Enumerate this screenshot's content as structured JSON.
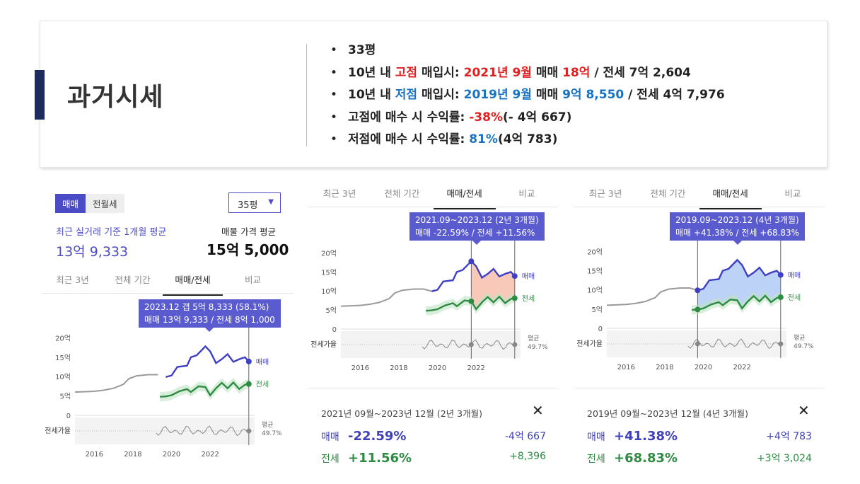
{
  "summary": {
    "title": "과거시세",
    "bullets": {
      "b1": "33평",
      "b2_a": "10년 내 ",
      "b2_b": "고점",
      "b2_c": " 매입시: ",
      "b2_d": "2021년 9월",
      "b2_e": " 매매 ",
      "b2_f": "18억",
      "b2_g": " / 전세 7억 2,604",
      "b3_a": "10년 내 ",
      "b3_b": "저점",
      "b3_c": " 매입시: ",
      "b3_d": "2019년 9월",
      "b3_e": " 매매 ",
      "b3_f": "9억 8,550",
      "b3_g": " / 전세 4억 7,976",
      "b4_a": "고점에 매수 시 수익률: ",
      "b4_b": "-38%",
      "b4_c": "(- 4억 667)",
      "b5_a": "저점에 매수 시 수익률: ",
      "b5_b": "81%",
      "b5_c": "(4억 783)"
    }
  },
  "left": {
    "seg_sale": "매매",
    "seg_rent": "전월세",
    "size": "35평",
    "recent_label": "최근 실거래 기준 1개월 평균",
    "recent_value": "13억 9,333",
    "listing_label": "매물 가격 평균",
    "listing_value": "15억 5,000",
    "tabs": [
      "최근 3년",
      "전체 기간",
      "매매/전세",
      "비교"
    ],
    "tooltip": [
      "2023.12  갭 5억 8,333 (58.1%)",
      "매매 13억 9,333 / 전세 8억 1,000"
    ]
  },
  "middle": {
    "tabs": [
      "최근 3년",
      "전체 기간",
      "매매/전세",
      "비교"
    ],
    "tooltip": [
      "2021.09~2023.12 (2년 3개월)",
      "매매 -22.59%  /  전세 +11.56%"
    ],
    "period": "2021년 09월~2023년 12월 (2년 3개월)",
    "sale_label": "매매",
    "sale_pct": "-22.59%",
    "sale_amt": "-4억 667",
    "rent_label": "전세",
    "rent_pct": "+11.56%",
    "rent_amt": "+8,396"
  },
  "right": {
    "tabs": [
      "최근 3년",
      "전체 기간",
      "매매/전세",
      "비교"
    ],
    "tooltip": [
      "2019.09~2023.12 (4년 3개월)",
      "매매 +41.38%  /  전세 +68.83%"
    ],
    "period": "2019년 09월~2023년 12월 (4년 3개월)",
    "sale_label": "매매",
    "sale_pct": "+41.38%",
    "sale_amt": "+4억 783",
    "rent_label": "전세",
    "rent_pct": "+68.83%",
    "rent_amt": "+3억 3,024"
  },
  "chart_common": {
    "y_ticks": [
      "20억",
      "15억",
      "10억",
      "5억",
      "0"
    ],
    "x_ticks": [
      "2016",
      "2018",
      "2020",
      "2022"
    ],
    "series_sale": "매매",
    "series_rent": "전세",
    "ratio_label": "전세가율",
    "ratio_avg_label": "평균",
    "ratio_avg_value": "49.7%",
    "close_icon": "close-icon",
    "colors": {
      "sale": "#3f3fc4",
      "rent": "#2e8b43",
      "history": "#9a9a9a",
      "loss_fill": "#f4a58a",
      "gain_fill": "#8fb4f0"
    }
  },
  "chart_data": [
    {
      "type": "line",
      "title": "",
      "x_range": [
        2015.0,
        2024.3
      ],
      "ylim": [
        0,
        21
      ],
      "series": [
        {
          "name": "매매",
          "x": [
            2015.0,
            2016.0,
            2016.5,
            2017.0,
            2017.5,
            2017.8,
            2018.2,
            2018.8,
            2019.3,
            2019.7,
            2020.0,
            2020.3,
            2020.8,
            2021.0,
            2021.3,
            2021.75,
            2022.0,
            2022.3,
            2022.6,
            2022.9,
            2023.2,
            2023.5,
            2023.8,
            2024.0
          ],
          "y": [
            6.0,
            6.2,
            6.5,
            7.0,
            8.0,
            9.5,
            10.2,
            10.5,
            10.5,
            9.9,
            10.3,
            12.5,
            12.8,
            15.0,
            15.5,
            17.8,
            16.5,
            13.5,
            14.5,
            15.8,
            13.8,
            14.5,
            15.0,
            13.9
          ]
        },
        {
          "name": "전세",
          "x": [
            2019.4,
            2019.7,
            2020.0,
            2020.4,
            2020.8,
            2021.0,
            2021.4,
            2021.75,
            2022.0,
            2022.3,
            2022.6,
            2022.9,
            2023.2,
            2023.5,
            2023.8,
            2024.0
          ],
          "y": [
            4.8,
            4.9,
            5.2,
            6.2,
            6.8,
            6.0,
            7.5,
            7.3,
            5.2,
            7.0,
            8.4,
            7.0,
            8.5,
            6.8,
            7.9,
            8.1
          ]
        }
      ]
    }
  ]
}
